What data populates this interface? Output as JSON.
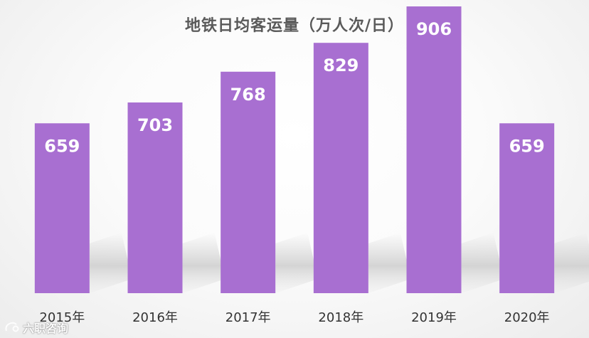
{
  "chart_data": {
    "type": "bar",
    "title": "地铁日均客运量（万人次/日）",
    "categories": [
      "2015年",
      "2016年",
      "2017年",
      "2018年",
      "2019年",
      "2020年"
    ],
    "values": [
      659,
      703,
      768,
      829,
      906,
      659
    ],
    "xlabel": "",
    "ylabel": "",
    "ylim": [
      300,
      950
    ],
    "grid": false,
    "legend": "none",
    "bar_color": "#a86fd1",
    "label_color": "#ffffff"
  },
  "watermark": {
    "text": "六职咨询"
  }
}
